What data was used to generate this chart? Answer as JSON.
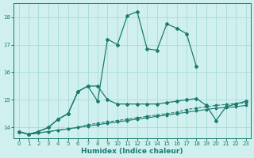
{
  "background_color": "#cff0ee",
  "grid_color": "#a8dbd8",
  "line_color": "#1b7b6f",
  "xlabel": "Humidex (Indice chaleur)",
  "xlim": [
    -0.5,
    23.5
  ],
  "ylim": [
    13.6,
    18.5
  ],
  "yticks": [
    14,
    15,
    16,
    17,
    18
  ],
  "xticks": [
    0,
    1,
    2,
    3,
    4,
    5,
    6,
    7,
    8,
    9,
    10,
    11,
    12,
    13,
    14,
    15,
    16,
    17,
    18,
    19,
    20,
    21,
    22,
    23
  ],
  "series": [
    {
      "x": [
        0,
        1,
        2,
        3,
        4,
        5,
        6,
        7,
        8,
        9,
        10,
        11,
        12,
        13,
        14,
        15,
        16,
        17,
        18,
        19,
        20,
        21,
        22,
        23
      ],
      "y": [
        13.85,
        13.75,
        13.8,
        13.85,
        13.9,
        13.95,
        14.0,
        14.05,
        14.1,
        14.15,
        14.2,
        14.25,
        14.3,
        14.35,
        14.4,
        14.45,
        14.5,
        14.55,
        14.6,
        14.65,
        14.7,
        14.72,
        14.75,
        14.8
      ],
      "marker": "D",
      "markersize": 1.5,
      "linewidth": 0.8,
      "linestyle": "-"
    },
    {
      "x": [
        0,
        1,
        2,
        3,
        4,
        5,
        6,
        7,
        8,
        9,
        10,
        11,
        12,
        13,
        14,
        15,
        16,
        17,
        18,
        19,
        20,
        21,
        22,
        23
      ],
      "y": [
        13.85,
        13.75,
        13.8,
        13.85,
        13.9,
        13.95,
        14.0,
        14.1,
        14.15,
        14.2,
        14.25,
        14.3,
        14.35,
        14.4,
        14.45,
        14.5,
        14.55,
        14.65,
        14.7,
        14.75,
        14.8,
        14.83,
        14.87,
        14.9
      ],
      "marker": "D",
      "markersize": 1.5,
      "linewidth": 0.8,
      "linestyle": "--"
    },
    {
      "x": [
        0,
        1,
        2,
        3,
        4,
        5,
        6,
        7,
        8,
        9,
        10,
        11,
        12,
        13,
        14,
        15,
        16,
        17,
        18,
        19,
        20,
        21,
        22,
        23
      ],
      "y": [
        13.85,
        13.75,
        13.85,
        14.0,
        14.3,
        14.5,
        15.3,
        15.5,
        15.5,
        15.0,
        14.85,
        14.85,
        14.85,
        14.85,
        14.85,
        14.9,
        14.95,
        15.0,
        15.05,
        14.8,
        14.25,
        14.75,
        14.85,
        14.95
      ],
      "marker": "D",
      "markersize": 2.0,
      "linewidth": 0.9,
      "linestyle": "-"
    },
    {
      "x": [
        0,
        1,
        2,
        3,
        4,
        5,
        6,
        7,
        8,
        9,
        10,
        11,
        12,
        13,
        14,
        15,
        16,
        17,
        18,
        19,
        20,
        21,
        22,
        23
      ],
      "y": [
        13.85,
        13.75,
        13.85,
        14.0,
        14.3,
        14.5,
        15.3,
        15.5,
        14.95,
        17.2,
        17.0,
        18.05,
        18.2,
        16.85,
        16.8,
        17.75,
        17.6,
        17.4,
        16.2,
        null,
        null,
        null,
        null,
        null
      ],
      "marker": "D",
      "markersize": 2.0,
      "linewidth": 0.9,
      "linestyle": "-"
    }
  ]
}
